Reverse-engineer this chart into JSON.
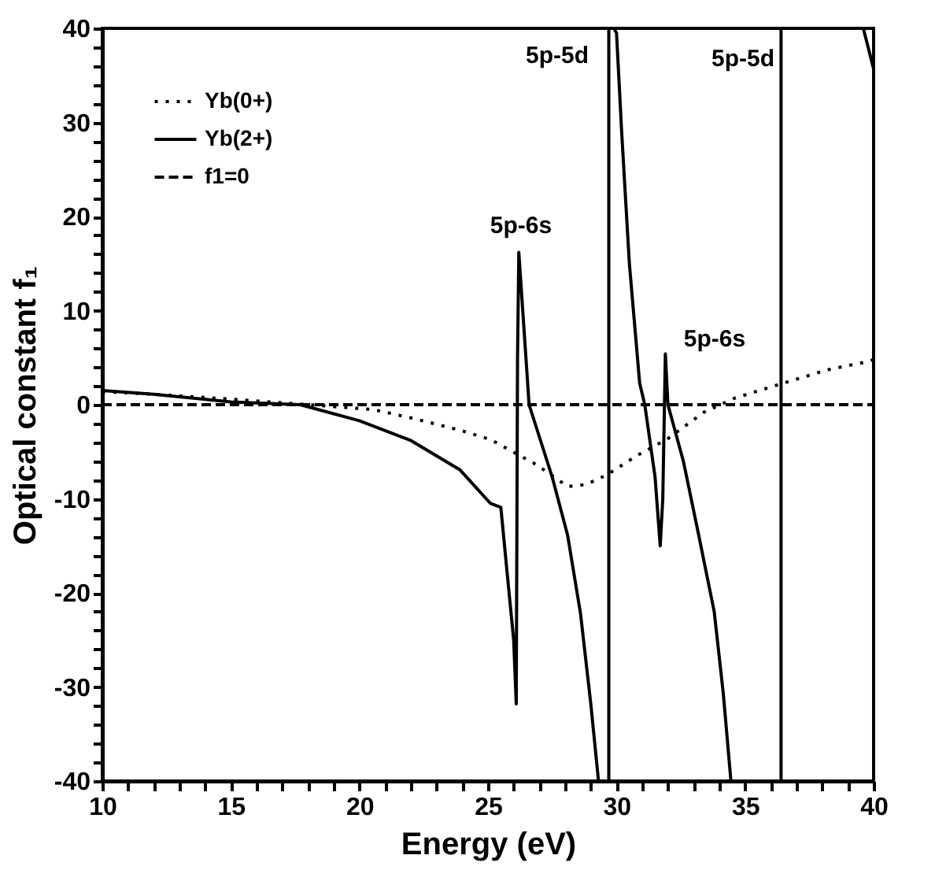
{
  "chart_data": {
    "type": "line",
    "xlabel": "Energy (eV)",
    "ylabel": "Optical constant f₁",
    "xlim": [
      10,
      40
    ],
    "ylim": [
      -40,
      40
    ],
    "xticks": [
      10,
      {
        "value": 11,
        "label": null
      },
      {
        "value": 12,
        "label": null
      },
      {
        "value": 13,
        "label": null
      },
      {
        "value": 14,
        "label": null
      },
      15,
      {
        "value": 16,
        "label": null
      },
      {
        "value": 17,
        "label": null
      },
      {
        "value": 18,
        "label": null
      },
      {
        "value": 19,
        "label": null
      },
      20,
      {
        "value": 21,
        "label": null
      },
      {
        "value": 22,
        "label": null
      },
      {
        "value": 23,
        "label": null
      },
      {
        "value": 24,
        "label": null
      },
      25,
      {
        "value": 26,
        "label": null
      },
      {
        "value": 27,
        "label": null
      },
      {
        "value": 28,
        "label": null
      },
      {
        "value": 29,
        "label": null
      },
      30,
      {
        "value": 31,
        "label": null
      },
      {
        "value": 32,
        "label": null
      },
      {
        "value": 33,
        "label": null
      },
      {
        "value": 34,
        "label": null
      },
      35,
      {
        "value": 36,
        "label": null
      },
      {
        "value": 37,
        "label": null
      },
      {
        "value": 38,
        "label": null
      },
      {
        "value": 39,
        "label": null
      },
      40
    ],
    "yticks": [
      -40,
      {
        "value": -38,
        "label": null
      },
      {
        "value": -36,
        "label": null
      },
      {
        "value": -34,
        "label": null
      },
      {
        "value": -32,
        "label": null
      },
      -30,
      {
        "value": -28,
        "label": null
      },
      {
        "value": -26,
        "label": null
      },
      {
        "value": -24,
        "label": null
      },
      {
        "value": -22,
        "label": null
      },
      -20,
      {
        "value": -18,
        "label": null
      },
      {
        "value": -16,
        "label": null
      },
      {
        "value": -14,
        "label": null
      },
      {
        "value": -12,
        "label": null
      },
      -10,
      {
        "value": -8,
        "label": null
      },
      {
        "value": -6,
        "label": null
      },
      {
        "value": -4,
        "label": null
      },
      {
        "value": -2,
        "label": null
      },
      0,
      {
        "value": 2,
        "label": null
      },
      {
        "value": 4,
        "label": null
      },
      {
        "value": 6,
        "label": null
      },
      {
        "value": 8,
        "label": null
      },
      10,
      {
        "value": 12,
        "label": null
      },
      {
        "value": 14,
        "label": null
      },
      {
        "value": 16,
        "label": null
      },
      {
        "value": 18,
        "label": null
      },
      20,
      {
        "value": 22,
        "label": null
      },
      {
        "value": 24,
        "label": null
      },
      {
        "value": 26,
        "label": null
      },
      {
        "value": 28,
        "label": null
      },
      30,
      {
        "value": 32,
        "label": null
      },
      {
        "value": 34,
        "label": null
      },
      {
        "value": 36,
        "label": null
      },
      {
        "value": 38,
        "label": null
      },
      40
    ],
    "grid": false,
    "legend": "top left",
    "series": [
      {
        "name": "Yb(0+)",
        "color": "#000000",
        "line_style": "dotted",
        "x": [
          10,
          12,
          15,
          17,
          18.5,
          20.5,
          22,
          23.9,
          25.1,
          25.5,
          26.3,
          26.9,
          28.1,
          28.8,
          29.6,
          30.8,
          32,
          33.4,
          34.6,
          35.9,
          36.5,
          38.2,
          39.8,
          40
        ],
        "values": [
          1.4,
          1.1,
          0.6,
          0.2,
          -0.1,
          -0.5,
          -1.4,
          -2.7,
          -3.7,
          -4.3,
          -5.5,
          -6.4,
          -8.7,
          -8.5,
          -7.5,
          -5.4,
          -3.6,
          -0.8,
          0.7,
          1.8,
          2.3,
          3.7,
          4.6,
          4.8
        ]
      },
      {
        "name": "Yb(2+)",
        "color": "#000000",
        "line_style": "solid",
        "x": [
          10,
          12,
          15,
          17.7,
          20,
          22,
          23.9,
          25.1,
          25.5,
          25.8,
          26.0,
          26.1,
          26.15,
          26.2,
          26.6,
          27.5,
          28.1,
          28.6,
          29.0,
          29.3,
          29.7,
          29.7,
          29.9,
          30.0,
          30.2,
          30.5,
          30.9,
          31.1,
          31.5,
          31.7,
          31.8,
          31.9,
          32.0,
          32.6,
          33.2,
          33.8,
          34.15,
          34.45,
          36.4,
          36.4,
          39.6,
          40
        ],
        "values": [
          1.5,
          1.1,
          0.3,
          0,
          -1.7,
          -3.8,
          -6.9,
          -10.5,
          -10.9,
          -19.4,
          -25,
          -31.8,
          5,
          16.2,
          0,
          -7.7,
          -13.9,
          -22.2,
          -31.8,
          -40,
          -40,
          40,
          40,
          39.5,
          29,
          15,
          2.3,
          0,
          -7.7,
          -15,
          -10,
          5.4,
          0,
          -6,
          -13.9,
          -22,
          -30.6,
          -40,
          -40,
          40,
          40,
          35.7
        ]
      },
      {
        "name": "f1=0",
        "color": "#000000",
        "line_style": "dashed",
        "x": [
          10,
          40
        ],
        "values": [
          0,
          0
        ]
      }
    ],
    "annotations": [
      "5p-6s",
      "5p-5d",
      "5p-6s",
      "5p-5d"
    ]
  }
}
